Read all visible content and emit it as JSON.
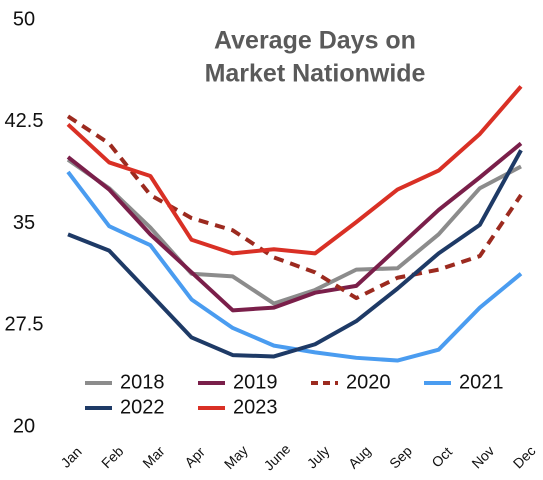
{
  "chart_data": {
    "type": "line",
    "title": [
      "Average Days on",
      "Market Nationwide"
    ],
    "categories": [
      "Jan",
      "Feb",
      "Mar",
      "Apr",
      "May",
      "June",
      "July",
      "Aug",
      "Sep",
      "Oct",
      "Nov",
      "Dec"
    ],
    "series": [
      {
        "name": "2018",
        "color": "#8c8c8c",
        "dashed": false,
        "values": [
          39.7,
          37.6,
          34.7,
          31.3,
          31.1,
          29.1,
          30.1,
          31.6,
          31.7,
          34.2,
          37.6,
          39.2
        ]
      },
      {
        "name": "2019",
        "color": "#7a1f4a",
        "dashed": false,
        "values": [
          39.9,
          37.5,
          34.2,
          31.4,
          28.6,
          28.8,
          29.9,
          30.4,
          33.2,
          36.0,
          38.4,
          40.9
        ]
      },
      {
        "name": "2020",
        "color": "#9c2a1f",
        "dashed": true,
        "values": [
          42.9,
          40.9,
          37.1,
          35.4,
          34.5,
          32.5,
          31.4,
          29.5,
          31.0,
          31.6,
          32.6,
          37.1
        ]
      },
      {
        "name": "2021",
        "color": "#4a9cf0",
        "dashed": false,
        "values": [
          38.8,
          34.8,
          33.4,
          29.4,
          27.3,
          26.0,
          25.5,
          25.1,
          24.9,
          25.7,
          28.8,
          31.3
        ]
      },
      {
        "name": "2022",
        "color": "#1e3a66",
        "dashed": false,
        "values": [
          34.2,
          33.0,
          29.8,
          26.6,
          25.3,
          25.2,
          26.1,
          27.8,
          30.2,
          32.8,
          34.9,
          40.4
        ]
      },
      {
        "name": "2023",
        "color": "#d93025",
        "dashed": false,
        "values": [
          42.3,
          39.5,
          38.5,
          33.8,
          32.8,
          33.1,
          32.8,
          35.1,
          37.5,
          38.9,
          41.6,
          45.1
        ]
      }
    ],
    "ylim": [
      20,
      50
    ],
    "yticks": [
      20,
      27.5,
      35,
      42.5,
      50
    ],
    "grid": false
  }
}
